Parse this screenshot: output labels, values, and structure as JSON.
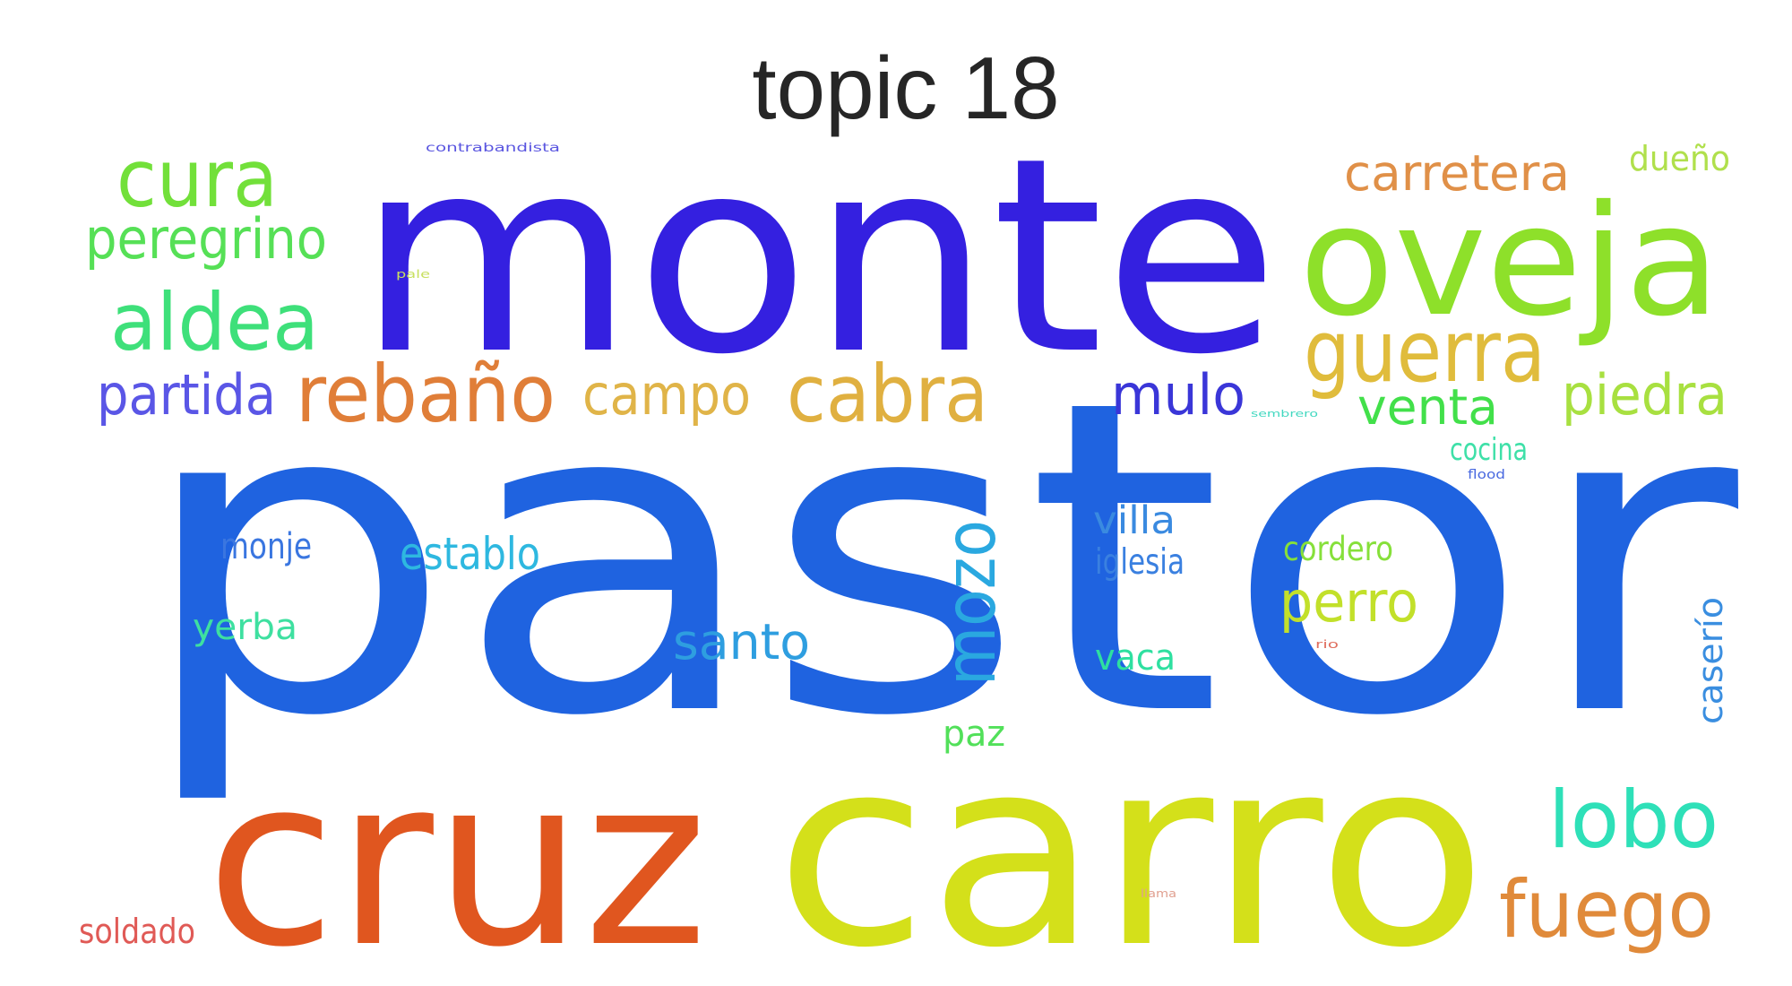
{
  "title": "topic 18",
  "words": [
    {
      "text": "pastor",
      "color": "#1f63e0"
    },
    {
      "text": "monte",
      "color": "#3420e0"
    },
    {
      "text": "carro",
      "color": "#d4e01a"
    },
    {
      "text": "cruz",
      "color": "#e0561f"
    },
    {
      "text": "oveja",
      "color": "#8ee02a"
    },
    {
      "text": "guerra",
      "color": "#e0bc3c"
    },
    {
      "text": "rebaño",
      "color": "#e07e38"
    },
    {
      "text": "cabra",
      "color": "#e0b040"
    },
    {
      "text": "aldea",
      "color": "#3ee07a"
    },
    {
      "text": "cura",
      "color": "#72e03a"
    },
    {
      "text": "mozo",
      "color": "#2aa8e0"
    },
    {
      "text": "lobo",
      "color": "#2ee0b8"
    },
    {
      "text": "fuego",
      "color": "#e08a3a"
    },
    {
      "text": "peregrino",
      "color": "#56e056"
    },
    {
      "text": "partida",
      "color": "#5a56e6"
    },
    {
      "text": "campo",
      "color": "#e0b448"
    },
    {
      "text": "carretera",
      "color": "#e09048"
    },
    {
      "text": "piedra",
      "color": "#a8e040"
    },
    {
      "text": "mulo",
      "color": "#3a36d8"
    },
    {
      "text": "venta",
      "color": "#42e04a"
    },
    {
      "text": "perro",
      "color": "#c2e02a"
    },
    {
      "text": "santo",
      "color": "#2e9ee0"
    },
    {
      "text": "establo",
      "color": "#2eb8e0"
    },
    {
      "text": "villa",
      "color": "#3a8ae0"
    },
    {
      "text": "iglesia",
      "color": "#3a80e0"
    },
    {
      "text": "vaca",
      "color": "#2ee0a0"
    },
    {
      "text": "paz",
      "color": "#52e05a"
    },
    {
      "text": "yerba",
      "color": "#3ee0a0"
    },
    {
      "text": "monje",
      "color": "#3a76e0"
    },
    {
      "text": "cordero",
      "color": "#86e03a"
    },
    {
      "text": "cocina",
      "color": "#3ee0a8"
    },
    {
      "text": "caserío",
      "color": "#3a8ee0"
    },
    {
      "text": "dueño",
      "color": "#b0e04c"
    },
    {
      "text": "soldado",
      "color": "#e05a56"
    },
    {
      "text": "contrabandista",
      "color": "#5a56e0"
    },
    {
      "text": "pale",
      "color": "#c8e060"
    },
    {
      "text": "sembrero",
      "color": "#42d8c0"
    },
    {
      "text": "flood",
      "color": "#4a6ae0"
    },
    {
      "text": "rio",
      "color": "#e07060"
    },
    {
      "text": "llama",
      "color": "#e0a090"
    }
  ]
}
